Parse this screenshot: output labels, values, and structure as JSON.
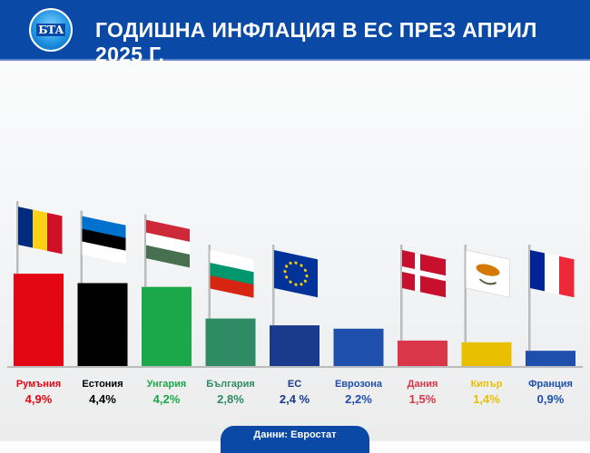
{
  "header": {
    "logo_text": "БТА",
    "title": "ГОДИШНА ИНФЛАЦИЯ В ЕС ПРЕЗ АПРИЛ 2025 Г."
  },
  "chart_data": {
    "type": "bar",
    "title": "ГОДИШНА ИНФЛАЦИЯ В ЕС ПРЕЗ АПРИЛ 2025 Г.",
    "categories": [
      "Румъния",
      "Естония",
      "Унгария",
      "България",
      "ЕС",
      "Еврозона",
      "Дания",
      "Кипър",
      "Франция"
    ],
    "values": [
      4.9,
      4.4,
      4.2,
      2.8,
      2.4,
      2.2,
      1.5,
      1.4,
      0.9
    ],
    "value_labels": [
      "4,9%",
      "4,4%",
      "4,2%",
      "2,8%",
      "2,4 %",
      "2,2%",
      "1,5%",
      "1,4%",
      "0,9%"
    ],
    "colors": [
      "#e30613",
      "#000000",
      "#1aa84a",
      "#2e8b63",
      "#1a3a8c",
      "#1e4fad",
      "#d9364a",
      "#e8c000",
      "#1e4fad"
    ],
    "flags": [
      "romania",
      "estonia",
      "hungary",
      "bulgaria",
      "eu",
      "",
      "denmark",
      "cyprus",
      "france"
    ],
    "grid": false,
    "legend": "none"
  },
  "footer": {
    "source": "Данни: Евростат"
  }
}
